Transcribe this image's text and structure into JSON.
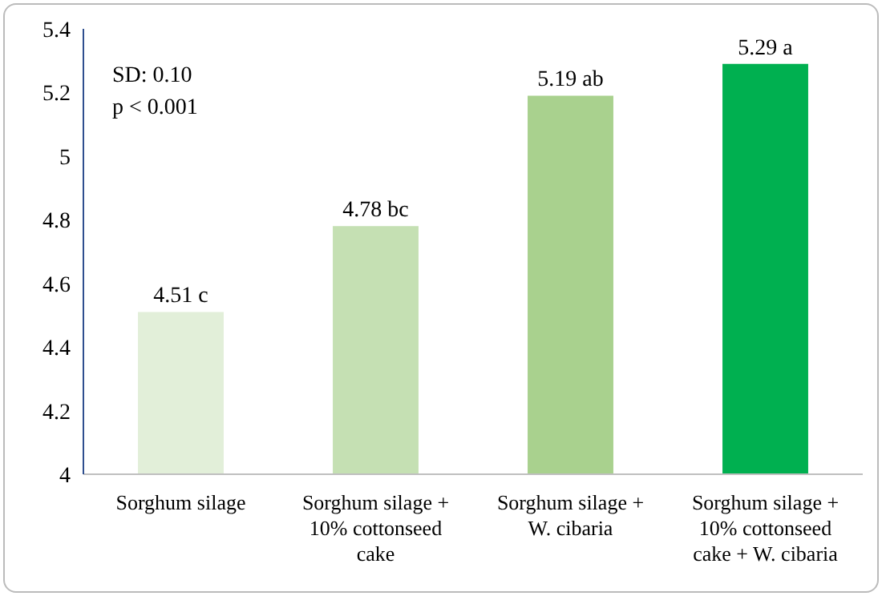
{
  "chart_data": {
    "type": "bar",
    "categories": [
      "Sorghum silage",
      "Sorghum silage + 10% cottonseed cake",
      "Sorghum silage + W. cibaria",
      "Sorghum silage + 10% cottonseed cake + W. cibaria"
    ],
    "values": [
      4.51,
      4.78,
      5.19,
      5.29
    ],
    "colors": [
      "#e2efd9",
      "#c5e0b3",
      "#a9d18e",
      "#00b050"
    ],
    "value_labels": [
      "4.51 c",
      "4.78 bc",
      "5.19 ab",
      "5.29 a"
    ],
    "ylim": [
      4,
      5.4
    ],
    "yticks": [
      4,
      4.2,
      4.4,
      4.6,
      4.8,
      5,
      5.2,
      5.4
    ],
    "grid": false,
    "legend": false,
    "annotations": [
      "SD: 0.10",
      "p < 0.001"
    ]
  }
}
